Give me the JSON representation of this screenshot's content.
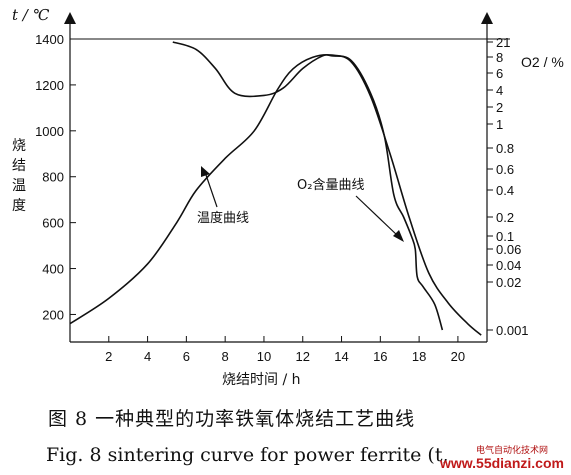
{
  "chart_data": {
    "type": "line",
    "xlabel": "烧结时间 / h",
    "ylabel_left": "烧结温度",
    "ylabel_left_unit": "t / ℃",
    "ylabel_right": "O2 / %",
    "xlim": [
      0,
      21.5
    ],
    "ylim_left": [
      80,
      1400
    ],
    "xticks": [
      "2",
      "4",
      "6",
      "8",
      "10",
      "12",
      "14",
      "16",
      "18",
      "20"
    ],
    "yticks_left": [
      "200",
      "400",
      "600",
      "800",
      "1000",
      "1200",
      "1400"
    ],
    "yticks_right": [
      "21",
      "8",
      "6",
      "4",
      "2",
      "1",
      "0.8",
      "0.6",
      "0.4",
      "0.2",
      "0.1",
      "0.06",
      "0.04",
      "0.02",
      "0.001"
    ],
    "series": [
      {
        "name": "温度曲线",
        "axis": "left",
        "points": [
          [
            0,
            160
          ],
          [
            2,
            270
          ],
          [
            4,
            420
          ],
          [
            5.5,
            600
          ],
          [
            6.5,
            740
          ],
          [
            8,
            880
          ],
          [
            9.5,
            1000
          ],
          [
            10.7,
            1180
          ],
          [
            11.5,
            1270
          ],
          [
            12.5,
            1320
          ],
          [
            13.5,
            1330
          ],
          [
            14.5,
            1300
          ],
          [
            15.5,
            1150
          ],
          [
            16.5,
            900
          ],
          [
            17.5,
            620
          ],
          [
            18.5,
            380
          ],
          [
            19.5,
            250
          ],
          [
            20.5,
            160
          ],
          [
            21.2,
            110
          ]
        ]
      },
      {
        "name": "O₂含量曲线",
        "axis": "right",
        "points": [
          [
            5.3,
            21
          ],
          [
            6.5,
            13
          ],
          [
            7.5,
            6.5
          ],
          [
            8.5,
            3.5
          ],
          [
            10,
            3.2
          ],
          [
            11,
            4.2
          ],
          [
            12,
            6.5
          ],
          [
            13,
            8.5
          ],
          [
            13.5,
            8.6
          ],
          [
            14.5,
            7.5
          ],
          [
            15.5,
            3.5
          ],
          [
            16.2,
            0.9
          ],
          [
            16.7,
            0.35
          ],
          [
            17.2,
            0.2
          ],
          [
            17.6,
            0.1
          ],
          [
            17.8,
            0.06
          ],
          [
            17.9,
            0.025
          ],
          [
            18.2,
            0.015
          ],
          [
            18.8,
            0.005
          ],
          [
            19.2,
            0.001
          ]
        ]
      }
    ],
    "annotations": {
      "temp_label": "温度曲线",
      "o2_label": "O₂含量曲线"
    }
  },
  "caption": {
    "cn": "图 8   一种典型的功率铁氧体烧结工艺曲线",
    "en": "Fig. 8 sintering curve for power ferrite (t,"
  },
  "watermark": {
    "cn": "电气自动化技术网",
    "url": "www.55dianzi.com"
  }
}
